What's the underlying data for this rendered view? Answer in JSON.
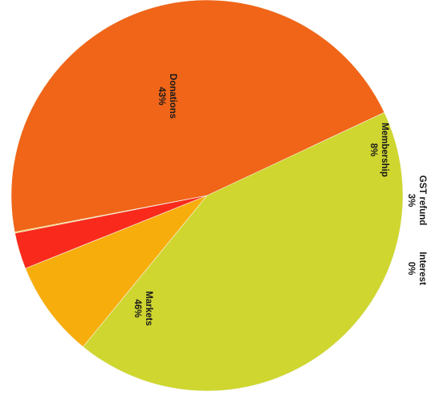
{
  "chart_data": {
    "type": "pie",
    "title": "",
    "rotation": "rotated 90° clockwise",
    "slices": [
      {
        "label": "Donations",
        "value": 43,
        "value_label": "43%",
        "color": "#cfd62f"
      },
      {
        "label": "Membership",
        "value": 8,
        "value_label": "8%",
        "color": "#f7ad0c"
      },
      {
        "label": "GST refund",
        "value": 3,
        "value_label": "3%",
        "color": "#f92a1c"
      },
      {
        "label": "Interest",
        "value": 0,
        "value_label": "0%",
        "color": "#f5c520"
      },
      {
        "label": "Markets",
        "value": 46,
        "value_label": "46%",
        "color": "#f06518"
      }
    ],
    "legend": "none"
  }
}
